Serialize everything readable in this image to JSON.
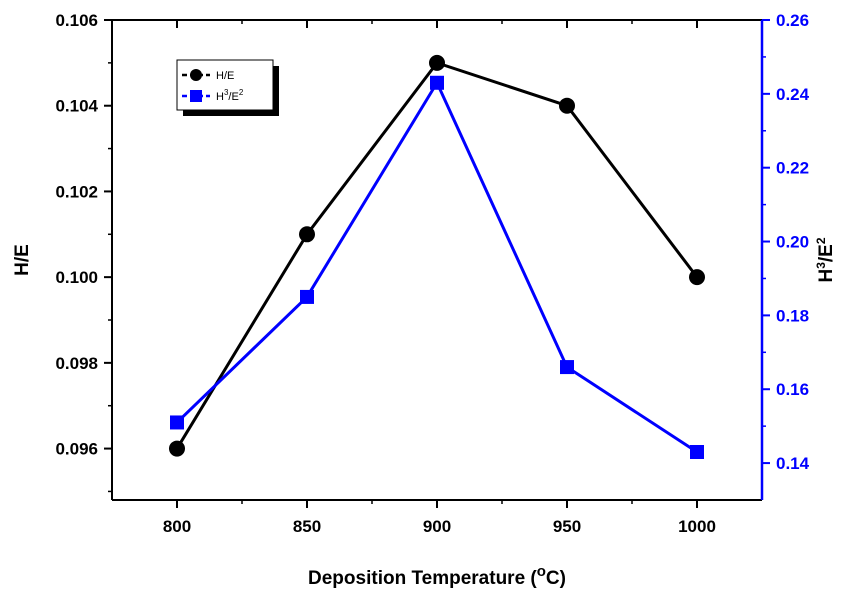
{
  "chart_data": {
    "type": "line",
    "x": [
      800,
      850,
      900,
      950,
      1000
    ],
    "xlim": [
      775,
      1025
    ],
    "xticks": [
      "800",
      "850",
      "900",
      "950",
      "1000"
    ],
    "xlabel": {
      "main": "Deposition Temperature (",
      "sup": "o",
      "tail": "C)"
    },
    "left_axis": {
      "label": "H/E",
      "ylim": [
        0.0948,
        0.106
      ],
      "ticks": [
        0.096,
        0.098,
        0.1,
        0.102,
        0.104,
        0.106
      ],
      "tick_labels": [
        "0.096",
        "0.098",
        "0.100",
        "0.102",
        "0.104",
        "0.106"
      ],
      "color": "#000000"
    },
    "right_axis": {
      "label": {
        "a": "H",
        "sup1": "3",
        "b": "/E",
        "sup2": "2"
      },
      "ylim": [
        0.13,
        0.26
      ],
      "ticks": [
        0.14,
        0.16,
        0.18,
        0.2,
        0.22,
        0.24,
        0.26
      ],
      "tick_labels": [
        "0.14",
        "0.16",
        "0.18",
        "0.20",
        "0.22",
        "0.24",
        "0.26"
      ],
      "color": "#0000ff"
    },
    "series": [
      {
        "name": "H/E",
        "axis": "left",
        "marker": "circle",
        "color": "#000000",
        "values": [
          0.096,
          0.101,
          0.105,
          0.104,
          0.1
        ]
      },
      {
        "name": "H3/E2",
        "axis": "right",
        "marker": "square",
        "color": "#0000ff",
        "values": [
          0.151,
          0.185,
          0.243,
          0.166,
          0.143
        ]
      }
    ],
    "legend": {
      "position": "top-left",
      "entries": [
        {
          "text": "H/E"
        },
        {
          "a": "H",
          "sup1": "3",
          "b": "/E",
          "sup2": "2"
        }
      ]
    }
  }
}
